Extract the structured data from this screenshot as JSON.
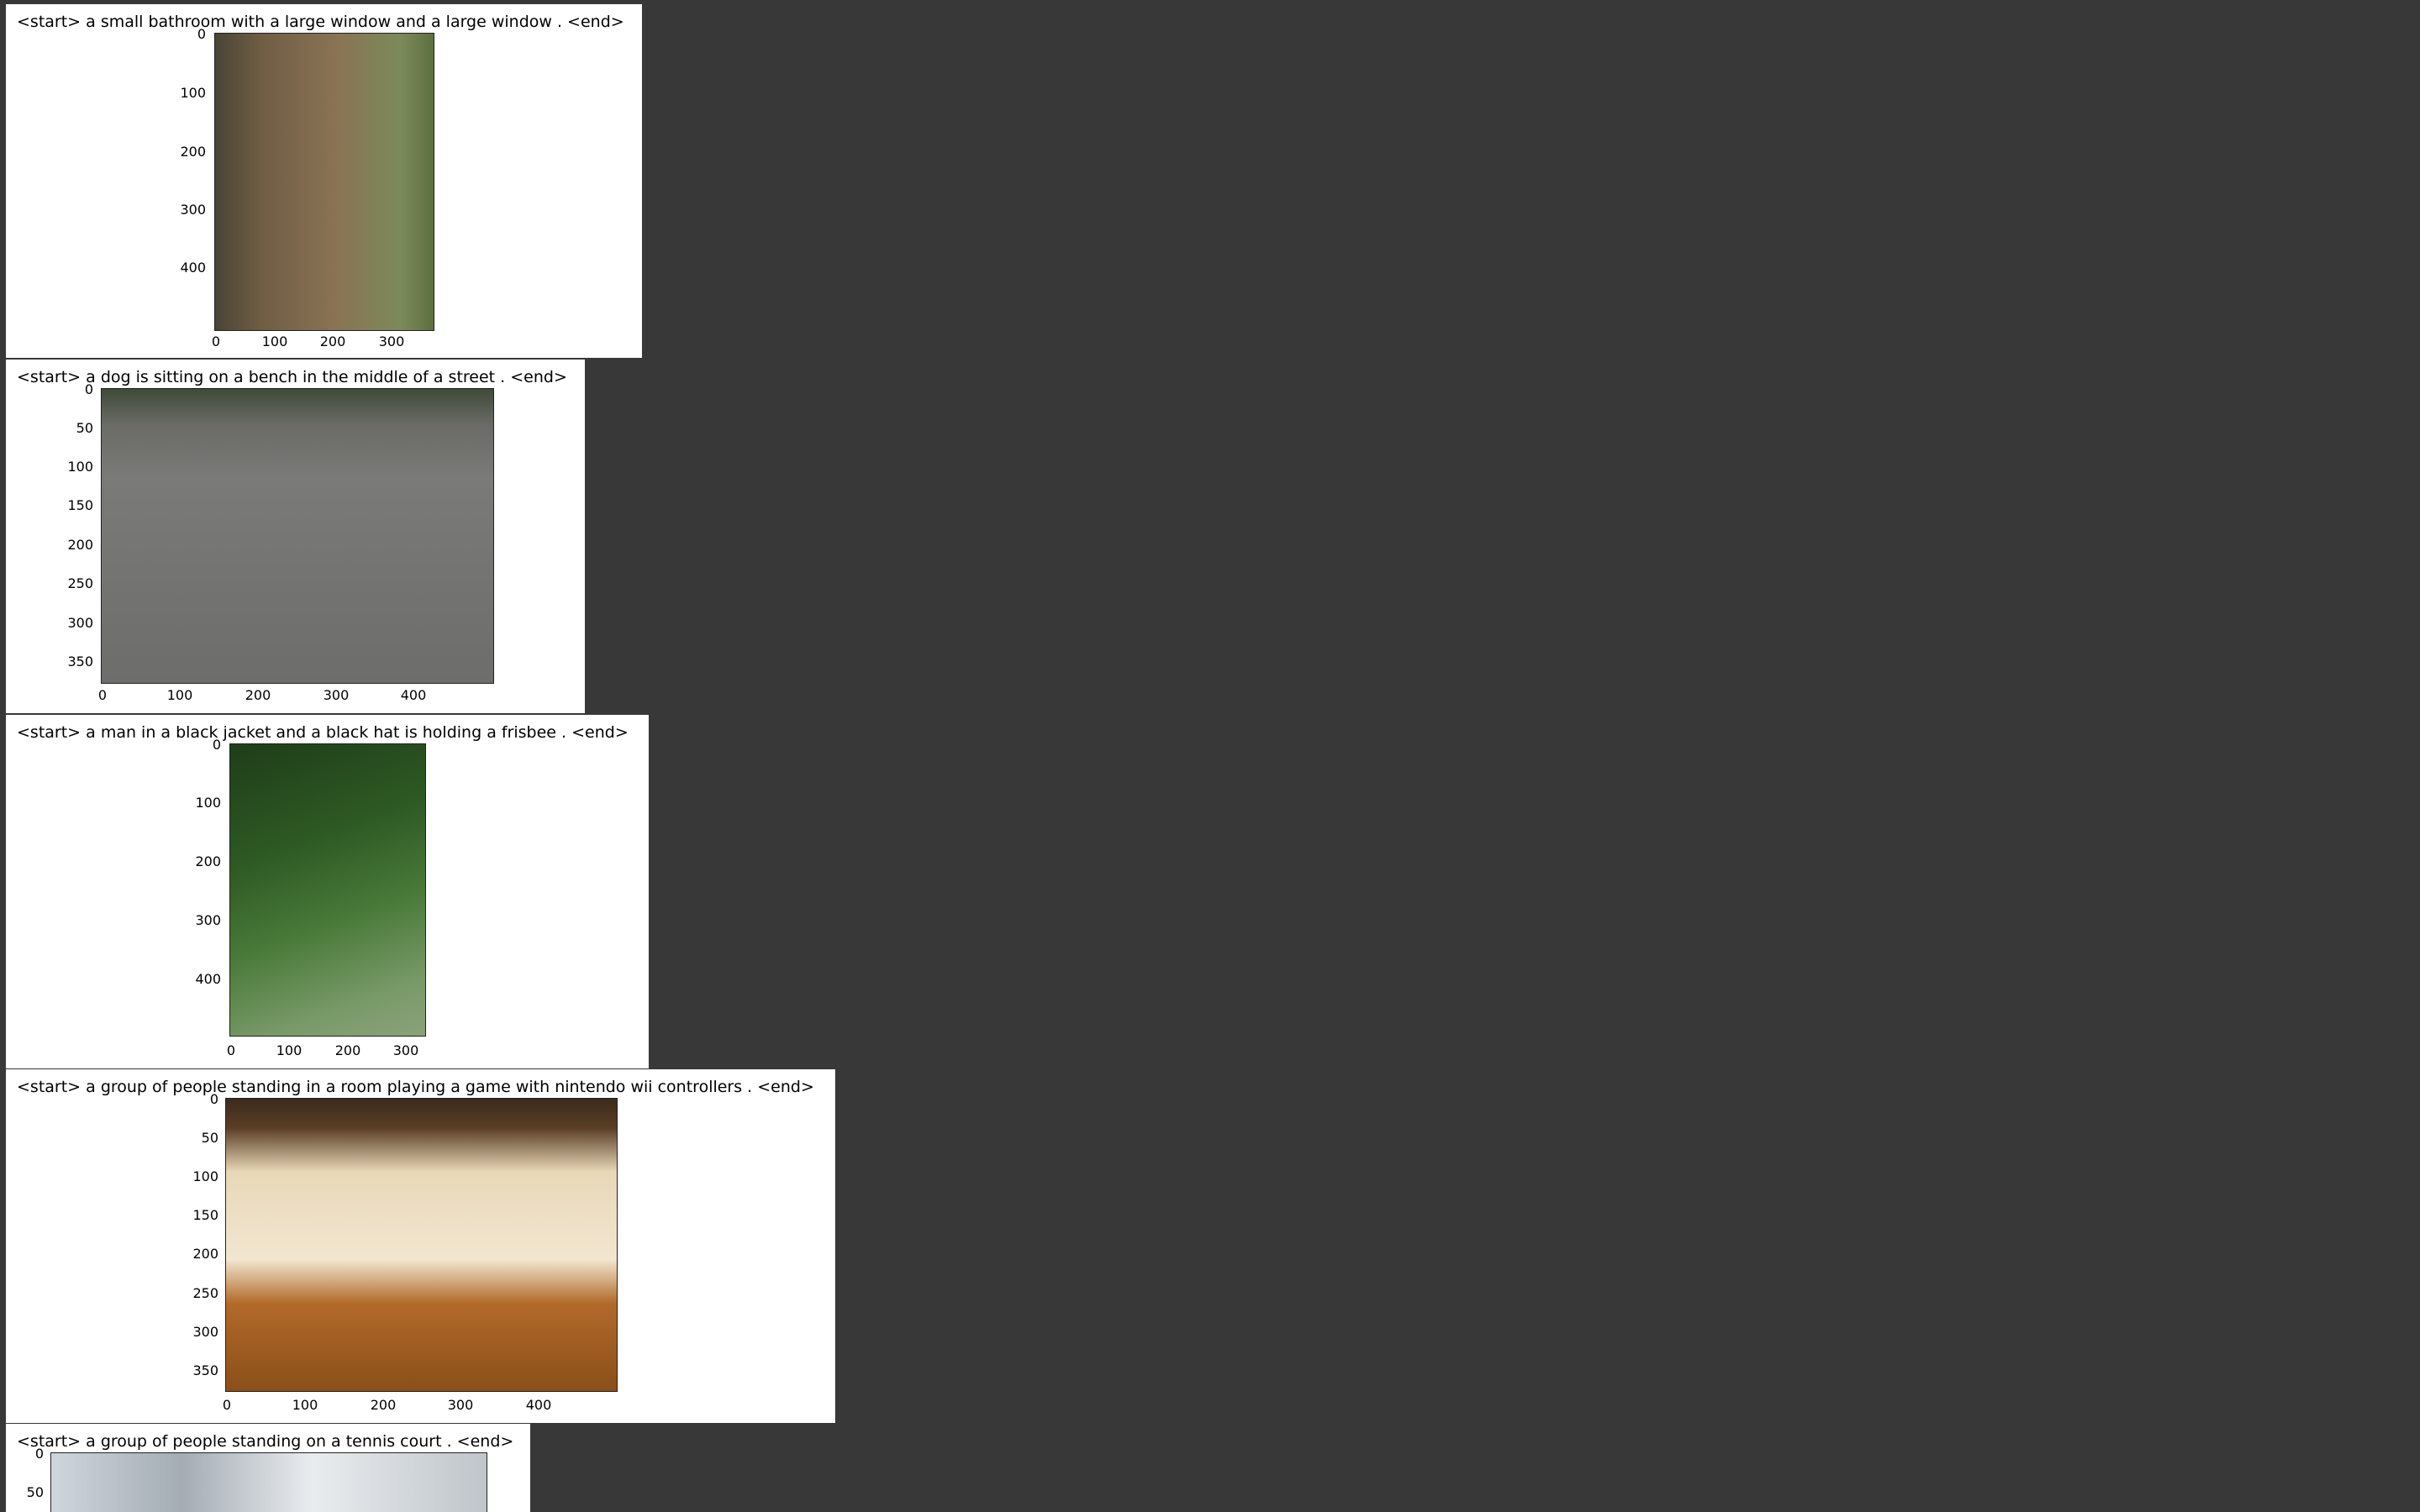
{
  "figures": [
    {
      "caption": "<start> a small bathroom with a large window and a large window . <end>",
      "y_ticks": [
        "0",
        "100",
        "200",
        "300",
        "400"
      ],
      "x_ticks": [
        "0",
        "100",
        "200",
        "300"
      ]
    },
    {
      "caption": "<start> a dog is sitting on a bench in the middle of a street . <end>",
      "y_ticks": [
        "0",
        "50",
        "100",
        "150",
        "200",
        "250",
        "300",
        "350"
      ],
      "x_ticks": [
        "0",
        "100",
        "200",
        "300",
        "400"
      ]
    },
    {
      "caption": "<start> a man in a black jacket and a black hat is holding a frisbee . <end>",
      "y_ticks": [
        "0",
        "100",
        "200",
        "300",
        "400"
      ],
      "x_ticks": [
        "0",
        "100",
        "200",
        "300"
      ]
    },
    {
      "caption": "<start> a group of people standing in a room playing a game with nintendo wii controllers . <end>",
      "y_ticks": [
        "0",
        "50",
        "100",
        "150",
        "200",
        "250",
        "300",
        "350"
      ],
      "x_ticks": [
        "0",
        "100",
        "200",
        "300",
        "400"
      ]
    },
    {
      "caption": "<start> a group of people standing on a tennis court . <end>",
      "y_ticks": [
        "0",
        "50"
      ],
      "x_ticks": []
    }
  ]
}
